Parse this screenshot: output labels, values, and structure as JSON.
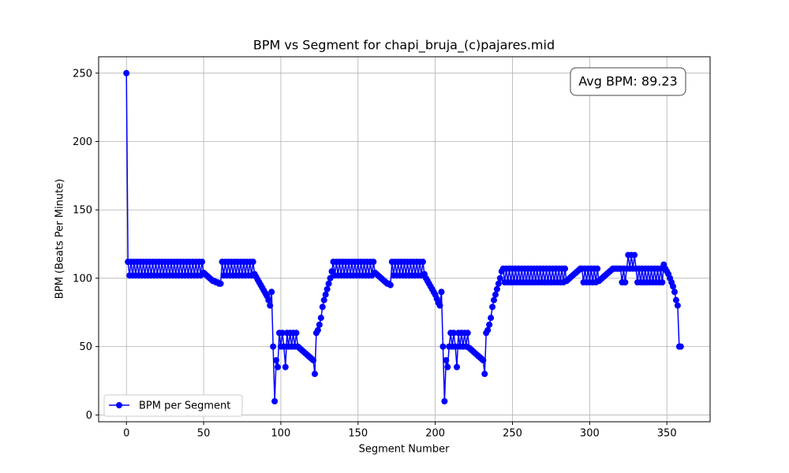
{
  "chart_data": {
    "type": "line",
    "title": "BPM vs Segment for chapi_bruja_(c)pajares.mid",
    "x_label": "Segment Number",
    "y_label": "BPM (Beats Per Minute)",
    "annotation": "Avg BPM: 89.23",
    "grid": true,
    "legend": "lower left",
    "marker": "circle",
    "xlim": [
      -18,
      378
    ],
    "ylim": [
      -5,
      262
    ],
    "xticks": [
      0,
      50,
      100,
      150,
      200,
      250,
      300,
      350
    ],
    "yticks": [
      0,
      50,
      100,
      150,
      200,
      250
    ],
    "x": [
      0,
      1,
      2,
      3,
      4,
      5,
      6,
      7,
      8,
      9,
      10,
      11,
      12,
      13,
      14,
      15,
      16,
      17,
      18,
      19,
      20,
      21,
      22,
      23,
      24,
      25,
      26,
      27,
      28,
      29,
      30,
      31,
      32,
      33,
      34,
      35,
      36,
      37,
      38,
      39,
      40,
      41,
      42,
      43,
      44,
      45,
      46,
      47,
      48,
      49,
      50,
      51,
      52,
      53,
      54,
      55,
      56,
      57,
      58,
      59,
      60,
      61,
      62,
      63,
      64,
      65,
      66,
      67,
      68,
      69,
      70,
      71,
      72,
      73,
      74,
      75,
      76,
      77,
      78,
      79,
      80,
      81,
      82,
      83,
      84,
      85,
      86,
      87,
      88,
      89,
      90,
      91,
      92,
      93,
      94,
      95,
      96,
      97,
      98,
      99,
      100,
      101,
      102,
      103,
      104,
      105,
      106,
      107,
      108,
      109,
      110,
      111,
      112,
      113,
      114,
      115,
      116,
      117,
      118,
      119,
      120,
      121,
      122,
      123,
      124,
      125,
      126,
      127,
      128,
      129,
      130,
      131,
      132,
      133,
      134,
      135,
      136,
      137,
      138,
      139,
      140,
      141,
      142,
      143,
      144,
      145,
      146,
      147,
      148,
      149,
      150,
      151,
      152,
      153,
      154,
      155,
      156,
      157,
      158,
      159,
      160,
      161,
      162,
      163,
      164,
      165,
      166,
      167,
      168,
      169,
      170,
      171,
      172,
      173,
      174,
      175,
      176,
      177,
      178,
      179,
      180,
      181,
      182,
      183,
      184,
      185,
      186,
      187,
      188,
      189,
      190,
      191,
      192,
      193,
      194,
      195,
      196,
      197,
      198,
      199,
      200,
      201,
      202,
      203,
      204,
      205,
      206,
      207,
      208,
      209,
      210,
      211,
      212,
      213,
      214,
      215,
      216,
      217,
      218,
      219,
      220,
      221,
      222,
      223,
      224,
      225,
      226,
      227,
      228,
      229,
      230,
      231,
      232,
      233,
      234,
      235,
      236,
      237,
      238,
      239,
      240,
      241,
      242,
      243,
      244,
      245,
      246,
      247,
      248,
      249,
      250,
      251,
      252,
      253,
      254,
      255,
      256,
      257,
      258,
      259,
      260,
      261,
      262,
      263,
      264,
      265,
      266,
      267,
      268,
      269,
      270,
      271,
      272,
      273,
      274,
      275,
      276,
      277,
      278,
      279,
      280,
      281,
      282,
      283,
      284,
      285,
      286,
      287,
      288,
      289,
      290,
      291,
      292,
      293,
      294,
      295,
      296,
      297,
      298,
      299,
      300,
      301,
      302,
      303,
      304,
      305,
      306,
      307,
      308,
      309,
      310,
      311,
      312,
      313,
      314,
      315,
      316,
      317,
      318,
      319,
      320,
      321,
      322,
      323,
      324,
      325,
      326,
      327,
      328,
      329,
      330,
      331,
      332,
      333,
      334,
      335,
      336,
      337,
      338,
      339,
      340,
      341,
      342,
      343,
      344,
      345,
      346,
      347,
      348,
      349,
      350,
      351,
      352,
      353,
      354,
      355,
      356,
      357,
      358,
      359
    ],
    "series": [
      {
        "name": "BPM per Segment",
        "color": "#0000ff",
        "values": [
          250,
          112,
          102,
          112,
          102,
          112,
          102,
          112,
          102,
          112,
          102,
          112,
          102,
          112,
          102,
          112,
          102,
          112,
          102,
          112,
          102,
          112,
          102,
          112,
          102,
          112,
          102,
          112,
          102,
          112,
          102,
          112,
          102,
          112,
          102,
          112,
          102,
          112,
          102,
          112,
          102,
          112,
          102,
          112,
          102,
          112,
          102,
          112,
          102,
          112,
          104,
          103,
          102,
          101,
          100,
          99,
          98,
          98,
          97,
          97,
          96,
          96,
          112,
          102,
          112,
          102,
          112,
          102,
          112,
          102,
          112,
          102,
          112,
          102,
          112,
          102,
          112,
          102,
          112,
          102,
          112,
          102,
          112,
          103,
          101,
          99,
          97,
          95,
          93,
          91,
          89,
          87,
          84,
          80,
          90,
          50,
          10,
          40,
          35,
          60,
          50,
          60,
          50,
          35,
          60,
          50,
          60,
          50,
          60,
          50,
          60,
          50,
          49,
          48,
          47,
          46,
          45,
          44,
          43,
          42,
          41,
          40,
          30,
          60,
          62,
          66,
          71,
          79,
          84,
          88,
          92,
          96,
          100,
          105,
          112,
          102,
          112,
          102,
          112,
          102,
          112,
          102,
          112,
          102,
          112,
          102,
          112,
          102,
          112,
          102,
          112,
          102,
          112,
          102,
          112,
          102,
          112,
          102,
          112,
          102,
          112,
          104,
          103,
          102,
          101,
          100,
          99,
          98,
          97,
          96,
          96,
          95,
          112,
          102,
          112,
          102,
          112,
          102,
          112,
          102,
          112,
          102,
          112,
          102,
          112,
          102,
          112,
          102,
          112,
          102,
          112,
          102,
          112,
          103,
          100,
          98,
          96,
          94,
          92,
          90,
          88,
          85,
          82,
          80,
          90,
          50,
          10,
          40,
          35,
          50,
          60,
          50,
          60,
          50,
          35,
          60,
          50,
          60,
          50,
          60,
          50,
          60,
          49,
          48,
          47,
          46,
          45,
          44,
          43,
          42,
          41,
          40,
          30,
          60,
          62,
          66,
          71,
          79,
          84,
          88,
          92,
          96,
          100,
          105,
          107,
          97,
          107,
          97,
          107,
          97,
          107,
          97,
          107,
          97,
          107,
          97,
          107,
          97,
          107,
          97,
          107,
          97,
          107,
          97,
          107,
          97,
          107,
          97,
          107,
          97,
          107,
          97,
          107,
          97,
          107,
          97,
          107,
          97,
          107,
          97,
          107,
          97,
          107,
          97,
          107,
          98,
          99,
          100,
          101,
          102,
          103,
          104,
          105,
          106,
          107,
          107,
          97,
          107,
          97,
          107,
          97,
          107,
          97,
          107,
          97,
          107,
          98,
          99,
          100,
          101,
          102,
          103,
          104,
          105,
          106,
          107,
          107,
          107,
          107,
          107,
          107,
          97,
          107,
          97,
          107,
          117,
          107,
          117,
          107,
          117,
          107,
          97,
          107,
          97,
          107,
          97,
          107,
          97,
          107,
          97,
          107,
          97,
          107,
          97,
          107,
          97,
          107,
          97,
          110,
          107,
          105,
          103,
          100,
          97,
          94,
          90,
          84,
          80,
          50,
          50
        ]
      }
    ]
  }
}
